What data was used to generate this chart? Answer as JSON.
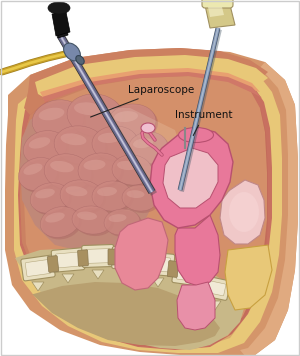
{
  "background_color": "#ffffff",
  "skin_outer_color": "#c8845a",
  "skin_mid_color": "#d4956a",
  "fat_color": "#e8c878",
  "fat_edge_color": "#c8a040",
  "peritoneum_color": "#c87060",
  "cavity_color": "#c8906a",
  "intestine_base": "#c07878",
  "intestine_light": "#d89898",
  "intestine_shadow": "#a05858",
  "uterus_pink": "#e8789a",
  "uterus_dark": "#b85070",
  "uterus_light": "#f0a0b8",
  "uterus_inner": "#e890a8",
  "organ_wall": "#d06888",
  "bladder_color": "#f0b0c0",
  "rectum_color": "#e87898",
  "spine_tan": "#c8b888",
  "spine_bone": "#e8dfc0",
  "spine_dark": "#a09060",
  "spine_disc": "#8a7850",
  "scope_dark": "#333333",
  "scope_mid": "#666688",
  "scope_light": "#9999bb",
  "scope_highlight": "#ccccdd",
  "handle_black": "#1a1a1a",
  "handle_dark": "#2a2a2a",
  "cable_yellow": "#c8a028",
  "cable_light": "#e8c848",
  "inst_handle": "#d4c888",
  "inst_handle_light": "#ece8b0",
  "inst_shaft": "#8899aa",
  "right_skin": "#c8845a",
  "right_skin_light": "#e0aa80",
  "label_laparoscope": "Laparoscope",
  "label_instrument": "Instrument",
  "text_color": "#111111",
  "border_color": "#cccccc"
}
